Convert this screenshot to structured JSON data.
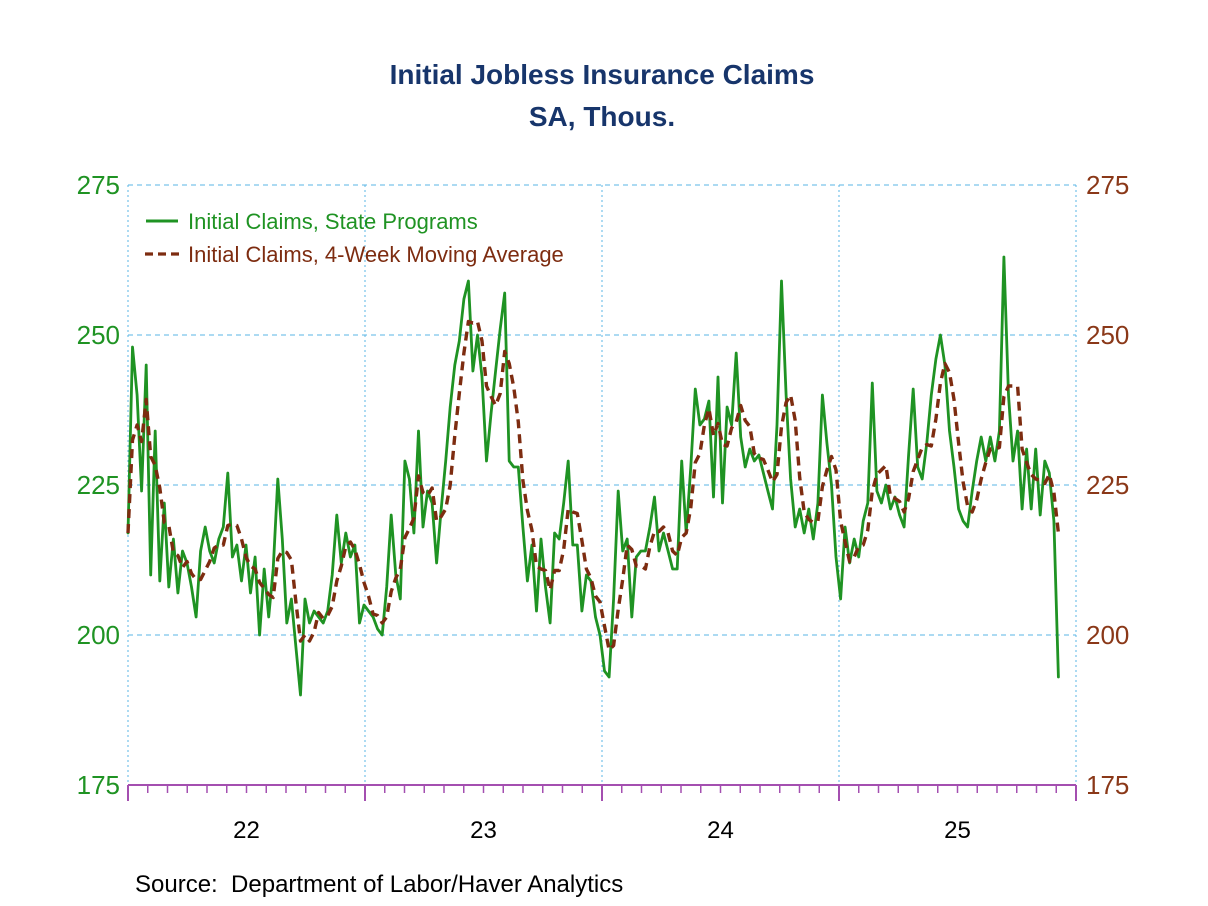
{
  "title": {
    "line1": "Initial Jobless Insurance Claims",
    "line2": "SA, Thous."
  },
  "source_note": "Source:  Department of Labor/Haver Analytics",
  "colors": {
    "title": "#17356b",
    "state_programs_line": "#1f9323",
    "moving_average_line": "#7d2c10",
    "left_axis_labels": "#1f9323",
    "right_axis_labels": "#8a3818",
    "x_axis_line": "#a44fb0",
    "x_axis_labels": "#000000",
    "gridlines": "#5ab6e4",
    "background": "#ffffff"
  },
  "legend": {
    "items": [
      {
        "label": "Initial Claims, State Programs",
        "line_style": "solid",
        "color": "#1f9323"
      },
      {
        "label": "Initial Claims, 4-Week Moving Average",
        "line_style": "dashed",
        "color": "#7d2c10"
      }
    ]
  },
  "y_axis": {
    "ticks": [
      275,
      250,
      225,
      200,
      175
    ],
    "min": 175,
    "max": 275,
    "shown_on": "both sides"
  },
  "x_axis": {
    "year_labels": [
      "22",
      "23",
      "24",
      "25"
    ],
    "minor_ticks_per_year": 12
  },
  "chart_data": {
    "type": "line",
    "title": "Initial Jobless Insurance Claims",
    "subtitle": "SA, Thous.",
    "x_unit": "weekly observations",
    "x_years": [
      "22",
      "23",
      "24",
      "25"
    ],
    "ylim": [
      175,
      275
    ],
    "grid": "horizontal and vertical light-blue dashed gridlines at 25-unit and year intervals",
    "legend_position": "top-left inside plot",
    "series": [
      {
        "name": "Initial Claims, State Programs",
        "values": [
          217,
          248,
          240,
          224,
          245,
          210,
          234,
          209,
          222,
          208,
          216,
          207,
          214,
          212,
          208,
          203,
          214,
          218,
          214,
          212,
          216,
          218,
          227,
          213,
          215,
          209,
          215,
          207,
          213,
          200,
          211,
          203,
          211,
          226,
          216,
          202,
          206,
          198,
          190,
          206,
          202,
          204,
          203,
          202,
          204,
          210,
          220,
          212,
          217,
          213,
          215,
          202,
          205,
          204,
          203,
          201,
          200,
          208,
          220,
          210,
          206,
          229,
          226,
          217,
          234,
          218,
          224,
          222,
          212,
          221,
          229,
          238,
          245,
          249,
          256,
          259,
          244,
          250,
          243,
          229,
          237,
          244,
          251,
          257,
          229,
          228,
          228,
          218,
          209,
          215,
          204,
          216,
          208,
          202,
          217,
          216,
          222,
          229,
          215,
          215,
          204,
          210,
          209,
          203,
          200,
          194,
          193,
          206,
          224,
          214,
          216,
          203,
          213,
          214,
          214,
          218,
          223,
          214,
          217,
          214,
          211,
          211,
          229,
          217,
          228,
          241,
          235,
          236,
          239,
          223,
          243,
          222,
          238,
          235,
          247,
          233,
          228,
          231,
          229,
          230,
          227,
          224,
          221,
          235,
          259,
          240,
          226,
          218,
          221,
          217,
          221,
          216,
          222,
          240,
          232,
          225,
          213,
          206,
          218,
          212,
          216,
          213,
          219,
          222,
          242,
          224,
          222,
          225,
          221,
          223,
          220,
          218,
          230,
          241,
          228,
          226,
          232,
          240,
          246,
          250,
          245,
          234,
          228,
          221,
          219,
          218,
          224,
          229,
          233,
          229,
          233,
          229,
          234,
          263,
          240,
          229,
          234,
          221,
          231,
          221,
          231,
          220,
          229,
          227,
          219,
          193
        ]
      },
      {
        "name": "Initial Claims, 4-Week Moving Average",
        "derived_from": "Initial Claims, State Programs",
        "ma_window": 4
      }
    ]
  }
}
